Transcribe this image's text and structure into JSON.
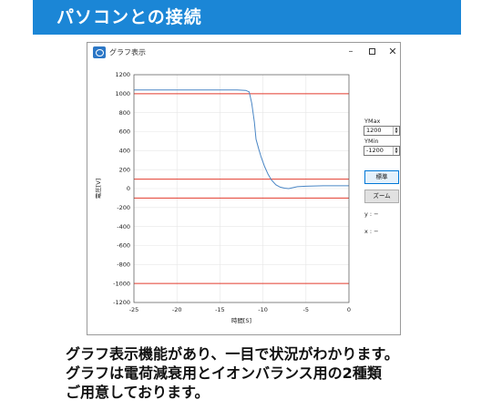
{
  "banner": {
    "title": "パソコンとの接続"
  },
  "window": {
    "title": "グラフ表示",
    "minimize": "–",
    "close": "✕"
  },
  "side": {
    "ymax_label": "YMax",
    "ymax_value": "1200",
    "ymin_label": "YMin",
    "ymin_value": "-1200",
    "standard_button": "標準",
    "zoom_button": "ズーム",
    "y_readout": "y : −",
    "x_readout": "x : −"
  },
  "caption": {
    "line1": "グラフ表示機能があり、一目で状況がわかります。",
    "line2": "グラフは電荷減衰用とイオンバランス用の2種類",
    "line3": "ご用意しております。"
  },
  "chart_data": {
    "type": "line",
    "xlabel": "時間[S]",
    "ylabel": "電圧[V]",
    "xlim": [
      -25,
      0
    ],
    "ylim": [
      -1200,
      1200
    ],
    "xticks": [
      -25,
      -20,
      -15,
      -10,
      -5,
      0
    ],
    "yticks": [
      1200,
      1000,
      800,
      600,
      400,
      200,
      0,
      -200,
      -400,
      -600,
      -800,
      -1000,
      -1200
    ],
    "reference_lines": [
      1000,
      100,
      -100,
      -1000
    ],
    "reference_color": "#e23b2e",
    "series_color": "#4a86c5",
    "series": [
      {
        "x": [
          -25,
          -20,
          -15,
          -13,
          -12,
          -11.6,
          -11.3,
          -11.0,
          -10.8,
          -10.5,
          -10.2,
          -9.8,
          -9.4,
          -9.0,
          -8.5,
          -8.0,
          -7.5,
          -7.0,
          -6.0,
          -5.0,
          -3.0,
          0
        ],
        "values": [
          1040,
          1040,
          1040,
          1040,
          1035,
          1020,
          900,
          700,
          520,
          420,
          330,
          230,
          150,
          90,
          40,
          15,
          5,
          0,
          20,
          25,
          30,
          30
        ]
      }
    ]
  }
}
